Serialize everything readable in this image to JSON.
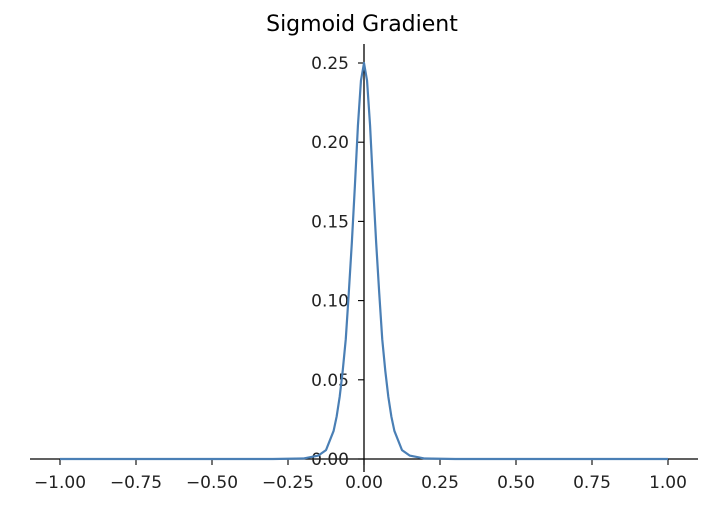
{
  "chart_data": {
    "type": "line",
    "title": "Sigmoid Gradient",
    "xlabel": "",
    "ylabel": "",
    "xlim": [
      -1.0,
      1.0
    ],
    "ylim": [
      0.0,
      0.26
    ],
    "grid": false,
    "legend": "none",
    "x_ticks": [
      -1.0,
      -0.75,
      -0.5,
      -0.25,
      0.0,
      0.25,
      0.5,
      0.75,
      1.0
    ],
    "x_tick_labels": [
      "−1.00",
      "−0.75",
      "−0.50",
      "−0.25",
      "0.00",
      "0.25",
      "0.50",
      "0.75",
      "1.00"
    ],
    "y_ticks": [
      0.0,
      0.05,
      0.1,
      0.15,
      0.2,
      0.25
    ],
    "y_tick_labels": [
      "0.00",
      "0.05",
      "0.10",
      "0.15",
      "0.20",
      "0.25"
    ],
    "series": [
      {
        "color": "#4a7fb5",
        "x": [
          -1.0,
          -0.3,
          -0.2,
          -0.15,
          -0.125,
          -0.1,
          -0.09,
          -0.08,
          -0.07,
          -0.06,
          -0.05,
          -0.04,
          -0.03,
          -0.02,
          -0.01,
          0.0,
          0.01,
          0.02,
          0.03,
          0.04,
          0.05,
          0.06,
          0.07,
          0.08,
          0.09,
          0.1,
          0.125,
          0.15,
          0.2,
          0.3,
          1.0
        ],
        "y": [
          0.0,
          0.0,
          0.0003,
          0.0022,
          0.0056,
          0.0177,
          0.0268,
          0.0393,
          0.0557,
          0.0756,
          0.105,
          0.1366,
          0.1723,
          0.2104,
          0.2389,
          0.25,
          0.2389,
          0.2104,
          0.1723,
          0.1366,
          0.105,
          0.0756,
          0.0557,
          0.0393,
          0.0268,
          0.0177,
          0.0056,
          0.0022,
          0.0003,
          0.0,
          0.0
        ]
      }
    ]
  }
}
